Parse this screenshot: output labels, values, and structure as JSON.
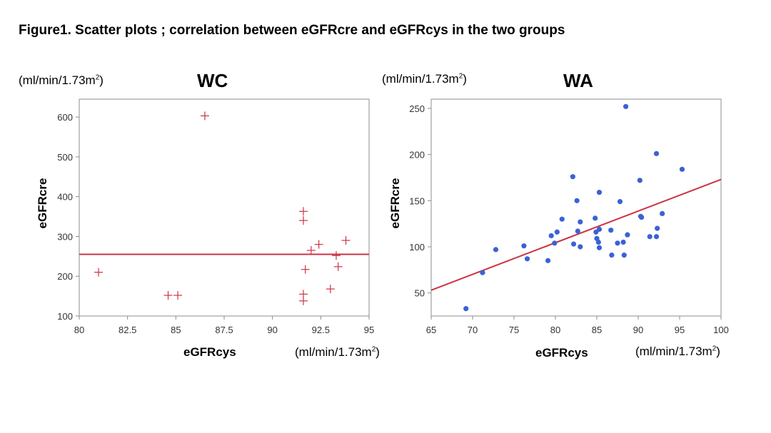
{
  "figure_title": "Figure1. Scatter plots ; correlation between eGFRcre and eGFRcys in the two groups",
  "units": {
    "wc_y": {
      "base": "(ml/min/1.73m",
      "sup": "2",
      "close": ")"
    },
    "wc_x": {
      "base": "(ml/min/1.73m",
      "sup": "2",
      "close": ")"
    },
    "wa_y": {
      "base": "(ml/min/1.73m",
      "sup": "2",
      "close": ")"
    },
    "wa_x": {
      "base": "(ml/min/1.73m",
      "sup": "2",
      "close": ")"
    }
  },
  "chart_data": [
    {
      "type": "scatter",
      "title": "WC",
      "xlabel": "eGFRcys",
      "ylabel": "eGFRcre",
      "xlim": [
        80,
        95
      ],
      "ylim": [
        100,
        645
      ],
      "xticks": [
        "80",
        "82.5",
        "85",
        "87.5",
        "90",
        "92.5",
        "95"
      ],
      "yticks": [
        "100",
        "200",
        "300",
        "400",
        "500",
        "600"
      ],
      "marker": "plus",
      "marker_color": "#cc3344",
      "line_color": "#cc3344",
      "fit_line": {
        "x": [
          80,
          95
        ],
        "y": [
          255,
          255
        ]
      },
      "points": [
        [
          81.0,
          210
        ],
        [
          84.6,
          152
        ],
        [
          85.1,
          152
        ],
        [
          86.5,
          603
        ],
        [
          91.6,
          363
        ],
        [
          91.6,
          340
        ],
        [
          91.7,
          217
        ],
        [
          91.6,
          155
        ],
        [
          91.6,
          138
        ],
        [
          92.0,
          265
        ],
        [
          92.4,
          280
        ],
        [
          93.0,
          168
        ],
        [
          93.3,
          252
        ],
        [
          93.4,
          224
        ],
        [
          93.8,
          290
        ]
      ]
    },
    {
      "type": "scatter",
      "title": "WA",
      "xlabel": "eGFRcys",
      "ylabel": "eGFRcre",
      "xlim": [
        65,
        100
      ],
      "ylim": [
        25,
        260
      ],
      "xticks": [
        "65",
        "70",
        "75",
        "80",
        "85",
        "90",
        "95",
        "100"
      ],
      "yticks": [
        "50",
        "100",
        "150",
        "200",
        "250"
      ],
      "marker": "dot",
      "marker_color": "#3a62d6",
      "line_color": "#cc3344",
      "fit_line": {
        "x": [
          65,
          100
        ],
        "y": [
          53,
          173
        ]
      },
      "points": [
        [
          69.2,
          33
        ],
        [
          71.2,
          72
        ],
        [
          72.8,
          97
        ],
        [
          76.2,
          101
        ],
        [
          76.6,
          87
        ],
        [
          79.1,
          85
        ],
        [
          79.5,
          112
        ],
        [
          79.9,
          104
        ],
        [
          80.2,
          116
        ],
        [
          80.8,
          130
        ],
        [
          82.1,
          176
        ],
        [
          82.2,
          103
        ],
        [
          82.6,
          150
        ],
        [
          82.7,
          117
        ],
        [
          83.0,
          127
        ],
        [
          83.0,
          100
        ],
        [
          84.8,
          131
        ],
        [
          84.9,
          116
        ],
        [
          85.0,
          109
        ],
        [
          85.2,
          105
        ],
        [
          85.3,
          159
        ],
        [
          85.3,
          119
        ],
        [
          85.3,
          99
        ],
        [
          86.7,
          118
        ],
        [
          86.8,
          91
        ],
        [
          87.5,
          104
        ],
        [
          87.8,
          149
        ],
        [
          88.2,
          105
        ],
        [
          88.3,
          91
        ],
        [
          88.5,
          252
        ],
        [
          88.7,
          113
        ],
        [
          90.2,
          172
        ],
        [
          90.3,
          133
        ],
        [
          90.4,
          132
        ],
        [
          91.4,
          111
        ],
        [
          92.2,
          111
        ],
        [
          92.2,
          201
        ],
        [
          92.3,
          120
        ],
        [
          92.9,
          136
        ],
        [
          95.3,
          184
        ]
      ]
    }
  ]
}
